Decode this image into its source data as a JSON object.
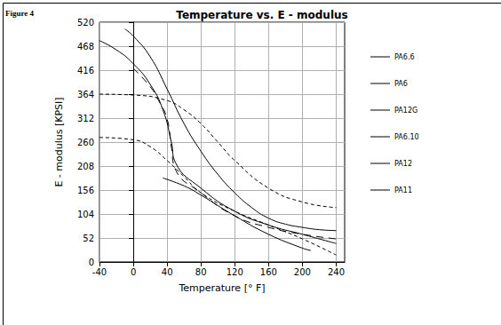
{
  "chart_data": {
    "type": "line",
    "title": "Temperature vs. E - modulus",
    "figure_label": "Figure 4",
    "x_label": "Temperature [° F]",
    "y_label": "E - modulus [KPSI]",
    "xlim": [
      -40,
      250
    ],
    "xticks": [
      -40,
      0,
      40,
      80,
      120,
      160,
      200,
      240
    ],
    "ylim": [
      0,
      520
    ],
    "yticks": [
      0,
      52,
      104,
      156,
      208,
      260,
      312,
      364,
      416,
      468,
      520
    ],
    "grid": true,
    "legend": "right",
    "series": [
      {
        "name": "PA6.6",
        "color": "#000000",
        "line_style": "solid",
        "x": [
          -10,
          0,
          20,
          40,
          60,
          80,
          100,
          120,
          140,
          160,
          180,
          200,
          220,
          240
        ],
        "values": [
          505,
          490,
          445,
          375,
          300,
          240,
          190,
          150,
          118,
          95,
          82,
          75,
          70,
          68
        ]
      },
      {
        "name": "PA6",
        "color": "#000000",
        "line_style": "solid",
        "x": [
          -40,
          -20,
          0,
          20,
          35,
          45,
          50,
          80,
          120,
          160,
          200,
          240
        ],
        "values": [
          480,
          460,
          430,
          385,
          330,
          260,
          215,
          160,
          110,
          80,
          60,
          40
        ]
      },
      {
        "name": "PA12G",
        "color": "#000000",
        "line_style": "dashed",
        "x": [
          -40,
          0,
          40,
          60,
          80,
          100,
          120,
          160,
          200,
          240
        ],
        "values": [
          364,
          362,
          350,
          330,
          300,
          260,
          220,
          160,
          130,
          118
        ]
      },
      {
        "name": "PA6.10",
        "color": "#000000",
        "line_style": "longdash",
        "x": [
          0,
          20,
          30,
          40,
          45,
          50,
          80,
          120,
          160,
          200,
          240
        ],
        "values": [
          420,
          380,
          350,
          310,
          250,
          200,
          150,
          100,
          75,
          60,
          50
        ]
      },
      {
        "name": "PA12",
        "color": "#000000",
        "line_style": "dashed",
        "x": [
          -40,
          0,
          20,
          40,
          60,
          80,
          120,
          160,
          200,
          240
        ],
        "values": [
          270,
          265,
          250,
          220,
          185,
          150,
          110,
          80,
          50,
          15
        ]
      },
      {
        "name": "PA11",
        "color": "#000000",
        "line_style": "solid",
        "x": [
          35,
          60,
          80,
          120,
          160,
          200,
          210
        ],
        "values": [
          182,
          165,
          145,
          100,
          60,
          30,
          25
        ]
      }
    ]
  }
}
